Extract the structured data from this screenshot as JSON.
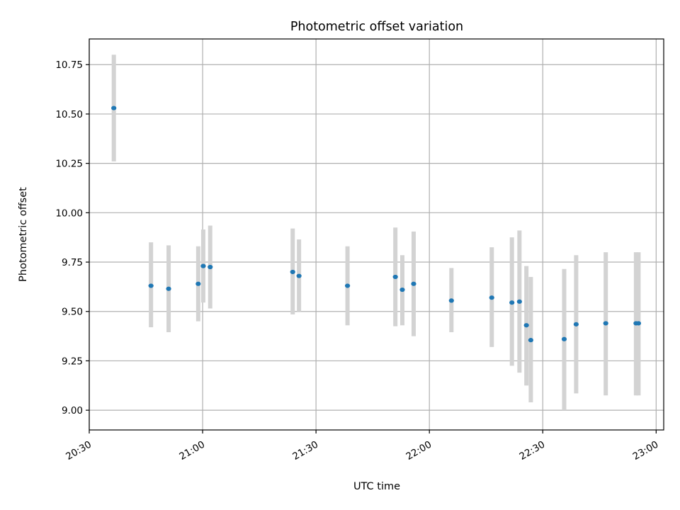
{
  "chart_data": {
    "type": "scatter",
    "title": "Photometric offset variation",
    "xlabel": "UTC time",
    "ylabel": "Photometric offset",
    "x_axis": {
      "type": "time",
      "range": [
        "20:30",
        "23:02"
      ],
      "ticks": [
        "20:30",
        "21:00",
        "21:30",
        "22:00",
        "22:30",
        "23:00"
      ]
    },
    "y_axis": {
      "range": [
        8.9,
        10.88
      ],
      "ticks": [
        "9.00",
        "9.25",
        "9.50",
        "9.75",
        "10.00",
        "10.25",
        "10.50",
        "10.75"
      ]
    },
    "grid": true,
    "colors": {
      "point": "#1f77b4",
      "errorbar": "#d3d3d3",
      "grid": "#b0b0b0"
    },
    "points": [
      {
        "x": "20:36:30",
        "y": 10.53,
        "ylow": 10.26,
        "yhigh": 10.8
      },
      {
        "x": "20:46:20",
        "y": 9.63,
        "ylow": 9.42,
        "yhigh": 9.85
      },
      {
        "x": "20:51:00",
        "y": 9.615,
        "ylow": 9.395,
        "yhigh": 9.835
      },
      {
        "x": "20:58:50",
        "y": 9.64,
        "ylow": 9.45,
        "yhigh": 9.83
      },
      {
        "x": "21:00:10",
        "y": 9.73,
        "ylow": 9.545,
        "yhigh": 9.915
      },
      {
        "x": "21:02:00",
        "y": 9.725,
        "ylow": 9.515,
        "yhigh": 9.935
      },
      {
        "x": "21:23:50",
        "y": 9.7,
        "ylow": 9.485,
        "yhigh": 9.92
      },
      {
        "x": "21:25:30",
        "y": 9.68,
        "ylow": 9.5,
        "yhigh": 9.865
      },
      {
        "x": "21:38:20",
        "y": 9.63,
        "ylow": 9.43,
        "yhigh": 9.83
      },
      {
        "x": "21:51:00",
        "y": 9.675,
        "ylow": 9.425,
        "yhigh": 9.925
      },
      {
        "x": "21:52:50",
        "y": 9.61,
        "ylow": 9.43,
        "yhigh": 9.785
      },
      {
        "x": "21:55:50",
        "y": 9.64,
        "ylow": 9.375,
        "yhigh": 9.905
      },
      {
        "x": "22:05:50",
        "y": 9.555,
        "ylow": 9.395,
        "yhigh": 9.72
      },
      {
        "x": "22:16:30",
        "y": 9.57,
        "ylow": 9.32,
        "yhigh": 9.825
      },
      {
        "x": "22:21:50",
        "y": 9.545,
        "ylow": 9.225,
        "yhigh": 9.875
      },
      {
        "x": "22:23:50",
        "y": 9.55,
        "ylow": 9.19,
        "yhigh": 9.91
      },
      {
        "x": "22:25:40",
        "y": 9.43,
        "ylow": 9.125,
        "yhigh": 9.73
      },
      {
        "x": "22:26:50",
        "y": 9.355,
        "ylow": 9.04,
        "yhigh": 9.675
      },
      {
        "x": "22:35:40",
        "y": 9.36,
        "ylow": 9.0,
        "yhigh": 9.715
      },
      {
        "x": "22:38:50",
        "y": 9.435,
        "ylow": 9.085,
        "yhigh": 9.785
      },
      {
        "x": "22:46:40",
        "y": 9.44,
        "ylow": 9.075,
        "yhigh": 9.8
      },
      {
        "x": "22:54:40",
        "y": 9.44,
        "ylow": 9.075,
        "yhigh": 9.8
      },
      {
        "x": "22:55:20",
        "y": 9.44,
        "ylow": 9.075,
        "yhigh": 9.8
      }
    ]
  }
}
